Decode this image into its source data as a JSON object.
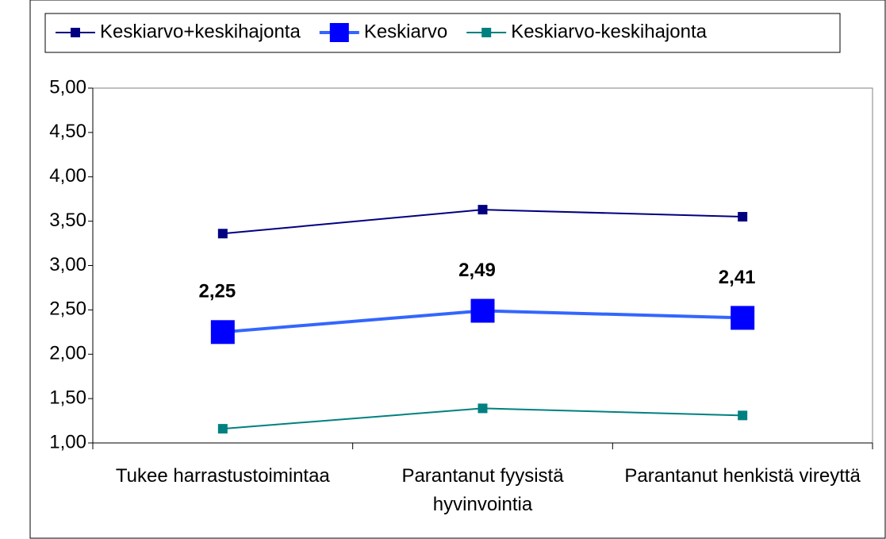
{
  "chart_data": {
    "type": "line",
    "categories": [
      "Tukee harrastustoimintaa",
      "Parantanut fyysistä hyvinvointia",
      "Parantanut henkistä vireyttä"
    ],
    "series": [
      {
        "name": "Keskiarvo+keskihajonta",
        "color": "#000080",
        "values": [
          3.36,
          3.63,
          3.55
        ]
      },
      {
        "name": "Keskiarvo",
        "color": "#0000ff",
        "values": [
          2.25,
          2.49,
          2.41
        ],
        "value_labels": [
          "2,25",
          "2,49",
          "2,41"
        ]
      },
      {
        "name": "Keskiarvo-keskihajonta",
        "color": "#008080",
        "values": [
          1.16,
          1.39,
          1.31
        ]
      }
    ],
    "ylim": [
      1,
      5
    ],
    "yticks": [
      {
        "value": 1,
        "label": "1,00"
      },
      {
        "value": 1.5,
        "label": "1,50"
      },
      {
        "value": 2,
        "label": "2,00"
      },
      {
        "value": 2.5,
        "label": "2,50"
      },
      {
        "value": 3,
        "label": "3,00"
      },
      {
        "value": 3.5,
        "label": "3,50"
      },
      {
        "value": 4,
        "label": "4,00"
      },
      {
        "value": 4.5,
        "label": "4,50"
      },
      {
        "value": 5,
        "label": "5,00"
      }
    ],
    "legend": "top"
  }
}
